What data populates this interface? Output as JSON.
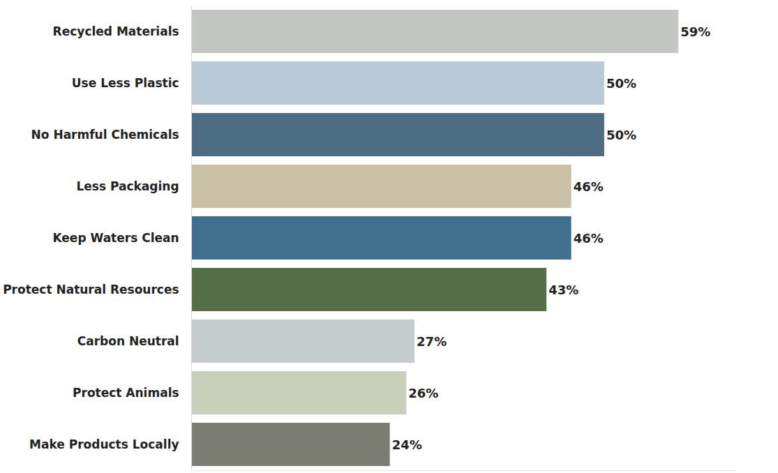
{
  "chart_data": {
    "type": "bar",
    "orientation": "horizontal",
    "categories": [
      "Recycled Materials",
      "Use Less Plastic",
      "No Harmful Chemicals",
      "Less Packaging",
      "Keep Waters Clean",
      "Protect Natural Resources",
      "Carbon Neutral",
      "Protect Animals",
      "Make Products Locally"
    ],
    "values": [
      59,
      50,
      50,
      46,
      46,
      43,
      27,
      26,
      24
    ],
    "value_labels": [
      "59%",
      "50%",
      "50%",
      "46%",
      "46%",
      "43%",
      "27%",
      "26%",
      "24%"
    ],
    "colors": [
      "#c4c6c2",
      "#b9cad6",
      "#4d6d84",
      "#c9c0a6",
      "#3e6f8e",
      "#546f48",
      "#c5cccd",
      "#c8cfba",
      "#7b7c72"
    ],
    "xlim": [
      0,
      66
    ],
    "data_labels": true,
    "tick_labels": "y",
    "grid": false
  }
}
